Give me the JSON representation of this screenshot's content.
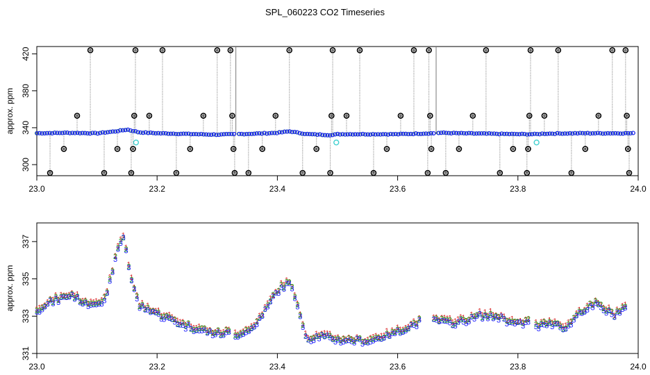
{
  "title": "SPL_060223  CO2 Timeseries",
  "colors": {
    "series1": "#d62020",
    "series2": "#20a020",
    "series3": "#1a1aff",
    "outlier": "#000000",
    "flag": "#40d0d0",
    "connector": "#8a8a8a"
  },
  "chart_data": [
    {
      "type": "scatter",
      "panel": "top",
      "title": "",
      "xlabel": "",
      "ylabel": "approx. ppm",
      "xlim": [
        23.0,
        24.0
      ],
      "ylim": [
        288,
        428
      ],
      "xticks": [
        "23.0",
        "23.2",
        "23.4",
        "23.6",
        "23.8",
        "24.0"
      ],
      "yticks": [
        "300",
        "340",
        "380",
        "420"
      ],
      "grid": false,
      "baseline_x": [
        23.0,
        23.05,
        23.1,
        23.13,
        23.15,
        23.17,
        23.2,
        23.3,
        23.33,
        23.36,
        23.4,
        23.42,
        23.45,
        23.49,
        23.5,
        23.6,
        23.66,
        23.67,
        23.7,
        23.8,
        23.83,
        23.84,
        23.9,
        23.95,
        23.99
      ],
      "baseline_y": [
        334,
        334.5,
        334,
        336,
        338,
        335,
        334,
        332.5,
        333,
        333.5,
        334.5,
        336,
        333,
        332,
        333,
        333,
        334,
        334.5,
        334,
        333,
        333,
        333.5,
        334,
        334,
        334
      ],
      "outliers": [
        {
          "x": 23.022,
          "y": 291
        },
        {
          "x": 23.045,
          "y": 317
        },
        {
          "x": 23.067,
          "y": 353
        },
        {
          "x": 23.089,
          "y": 424
        },
        {
          "x": 23.112,
          "y": 291
        },
        {
          "x": 23.134,
          "y": 317
        },
        {
          "x": 23.157,
          "y": 291
        },
        {
          "x": 23.16,
          "y": 317
        },
        {
          "x": 23.162,
          "y": 353
        },
        {
          "x": 23.164,
          "y": 424
        },
        {
          "x": 23.187,
          "y": 353
        },
        {
          "x": 23.209,
          "y": 424
        },
        {
          "x": 23.232,
          "y": 291
        },
        {
          "x": 23.255,
          "y": 317
        },
        {
          "x": 23.277,
          "y": 353
        },
        {
          "x": 23.3,
          "y": 424
        },
        {
          "x": 23.322,
          "y": 424
        },
        {
          "x": 23.325,
          "y": 353
        },
        {
          "x": 23.327,
          "y": 317
        },
        {
          "x": 23.329,
          "y": 291
        },
        {
          "x": 23.352,
          "y": 291
        },
        {
          "x": 23.375,
          "y": 317
        },
        {
          "x": 23.397,
          "y": 353
        },
        {
          "x": 23.42,
          "y": 424
        },
        {
          "x": 23.442,
          "y": 291
        },
        {
          "x": 23.465,
          "y": 317
        },
        {
          "x": 23.488,
          "y": 291
        },
        {
          "x": 23.49,
          "y": 353
        },
        {
          "x": 23.492,
          "y": 424
        },
        {
          "x": 23.515,
          "y": 353
        },
        {
          "x": 23.537,
          "y": 424
        },
        {
          "x": 23.56,
          "y": 291
        },
        {
          "x": 23.582,
          "y": 317
        },
        {
          "x": 23.605,
          "y": 353
        },
        {
          "x": 23.627,
          "y": 424
        },
        {
          "x": 23.65,
          "y": 291
        },
        {
          "x": 23.652,
          "y": 424
        },
        {
          "x": 23.654,
          "y": 353
        },
        {
          "x": 23.656,
          "y": 317
        },
        {
          "x": 23.68,
          "y": 291
        },
        {
          "x": 23.702,
          "y": 317
        },
        {
          "x": 23.725,
          "y": 353
        },
        {
          "x": 23.747,
          "y": 424
        },
        {
          "x": 23.77,
          "y": 291
        },
        {
          "x": 23.792,
          "y": 317
        },
        {
          "x": 23.815,
          "y": 291
        },
        {
          "x": 23.817,
          "y": 317
        },
        {
          "x": 23.819,
          "y": 353
        },
        {
          "x": 23.821,
          "y": 424
        },
        {
          "x": 23.844,
          "y": 353
        },
        {
          "x": 23.867,
          "y": 424
        },
        {
          "x": 23.889,
          "y": 291
        },
        {
          "x": 23.912,
          "y": 317
        },
        {
          "x": 23.934,
          "y": 353
        },
        {
          "x": 23.957,
          "y": 424
        },
        {
          "x": 23.979,
          "y": 424
        },
        {
          "x": 23.981,
          "y": 353
        },
        {
          "x": 23.983,
          "y": 317
        },
        {
          "x": 23.985,
          "y": 291
        }
      ],
      "flagged": [
        {
          "x": 23.165,
          "y": 324
        },
        {
          "x": 23.498,
          "y": 324
        },
        {
          "x": 23.831,
          "y": 324
        }
      ],
      "segment_breaks": [
        23.331,
        23.664
      ]
    },
    {
      "type": "scatter",
      "panel": "bottom",
      "title": "",
      "xlabel": "",
      "ylabel": "approx. ppm",
      "xlim": [
        23.0,
        24.0
      ],
      "ylim": [
        331,
        338
      ],
      "xticks": [
        "23.0",
        "23.2",
        "23.4",
        "23.6",
        "23.8",
        "24.0"
      ],
      "yticks": [
        "331",
        "333",
        "335",
        "337"
      ],
      "grid": false,
      "markers": [
        "1",
        "2",
        "3"
      ],
      "x": [
        23.0,
        23.03,
        23.06,
        23.08,
        23.1,
        23.115,
        23.125,
        23.135,
        23.14,
        23.145,
        23.155,
        23.17,
        23.2,
        23.25,
        23.3,
        23.32
      ],
      "y": [
        333.4,
        333.9,
        334.2,
        333.7,
        333.8,
        333.9,
        335.4,
        336.6,
        337.1,
        337.3,
        335.3,
        333.6,
        333.2,
        332.5,
        332.1,
        332.2
      ],
      "x2": [
        23.33,
        23.36,
        23.38,
        23.4,
        23.42,
        23.43,
        23.45,
        23.47,
        23.5,
        23.55,
        23.6,
        23.64
      ],
      "y2": [
        332.0,
        332.4,
        333.4,
        334.4,
        334.9,
        333.9,
        331.8,
        332.0,
        331.8,
        331.7,
        332.2,
        332.8
      ],
      "x3": [
        23.66,
        23.7,
        23.74,
        23.77,
        23.8,
        23.82
      ],
      "y3": [
        332.8,
        332.7,
        333.1,
        333.0,
        332.6,
        332.8
      ],
      "x4": [
        23.83,
        23.86,
        23.88,
        23.9,
        23.93,
        23.96,
        23.98
      ],
      "y4": [
        332.5,
        332.7,
        332.4,
        333.2,
        333.7,
        333.1,
        333.6
      ]
    }
  ]
}
